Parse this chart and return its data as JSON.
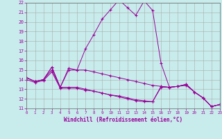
{
  "xlabel": "Windchill (Refroidissement éolien,°C)",
  "bg_color": "#c8ecec",
  "line_color": "#990099",
  "xlim": [
    0,
    23
  ],
  "ylim": [
    11,
    22
  ],
  "xticks": [
    0,
    1,
    2,
    3,
    4,
    5,
    6,
    7,
    8,
    9,
    10,
    11,
    12,
    13,
    14,
    15,
    16,
    17,
    18,
    19,
    20,
    21,
    22,
    23
  ],
  "yticks": [
    11,
    12,
    13,
    14,
    15,
    16,
    17,
    18,
    19,
    20,
    21,
    22
  ],
  "line1_x": [
    0,
    1,
    2,
    3,
    4,
    5,
    6,
    7,
    8,
    9,
    10,
    11,
    12,
    13,
    14,
    15,
    16,
    17,
    18,
    19,
    20,
    21,
    22,
    23
  ],
  "line1_y": [
    14.2,
    13.8,
    14.0,
    15.3,
    13.2,
    15.2,
    15.0,
    17.2,
    18.7,
    20.3,
    21.3,
    22.3,
    21.5,
    20.7,
    22.2,
    21.2,
    15.7,
    13.2,
    13.3,
    13.5,
    12.7,
    12.1,
    11.2,
    11.4
  ],
  "line2_x": [
    0,
    1,
    2,
    3,
    4,
    5,
    6,
    7,
    8,
    9,
    10,
    11,
    12,
    13,
    14,
    15,
    16,
    17,
    18,
    19,
    20,
    21,
    22,
    23
  ],
  "line2_y": [
    14.2,
    13.8,
    14.0,
    15.3,
    13.2,
    15.0,
    15.0,
    15.0,
    14.8,
    14.6,
    14.4,
    14.2,
    14.0,
    13.8,
    13.6,
    13.4,
    13.3,
    13.2,
    13.3,
    13.5,
    12.7,
    12.1,
    11.2,
    11.4
  ],
  "line3_x": [
    0,
    1,
    2,
    3,
    4,
    5,
    6,
    7,
    8,
    9,
    10,
    11,
    12,
    13,
    14,
    15,
    16,
    17,
    18,
    19,
    20,
    21,
    22,
    23
  ],
  "line3_y": [
    14.2,
    13.8,
    14.0,
    15.0,
    13.2,
    13.2,
    13.2,
    13.0,
    12.8,
    12.6,
    12.4,
    12.2,
    12.0,
    11.8,
    11.7,
    11.7,
    13.3,
    13.2,
    13.3,
    13.5,
    12.7,
    12.1,
    11.2,
    11.4
  ],
  "line4_x": [
    0,
    1,
    2,
    3,
    4,
    5,
    6,
    7,
    8,
    9,
    10,
    11,
    12,
    13,
    14,
    15,
    16,
    17,
    18,
    19,
    20,
    21,
    22,
    23
  ],
  "line4_y": [
    14.0,
    13.7,
    13.9,
    14.8,
    13.1,
    13.1,
    13.1,
    12.9,
    12.8,
    12.6,
    12.4,
    12.3,
    12.1,
    11.9,
    11.8,
    11.7,
    13.2,
    13.2,
    13.3,
    13.4,
    12.7,
    12.1,
    11.2,
    11.4
  ]
}
